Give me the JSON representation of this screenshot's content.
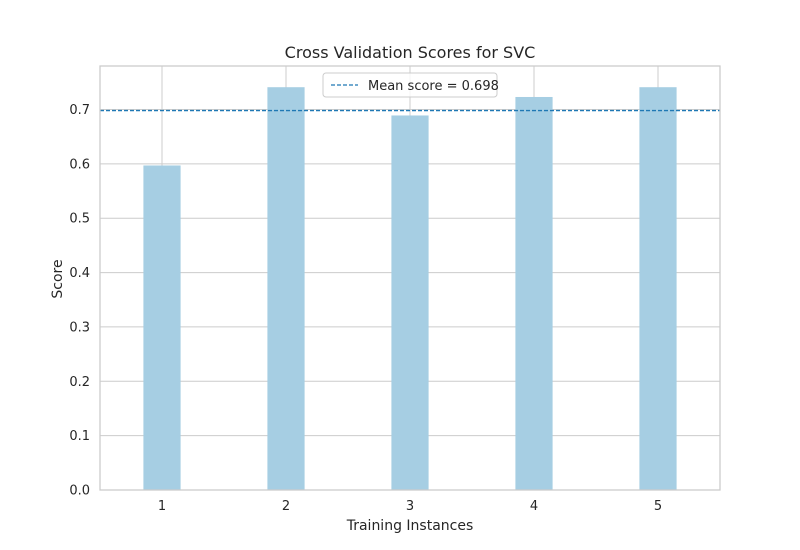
{
  "chart_data": {
    "type": "bar",
    "title": "Cross Validation Scores for SVC",
    "xlabel": "Training Instances",
    "ylabel": "Score",
    "categories": [
      "1",
      "2",
      "3",
      "4",
      "5"
    ],
    "values": [
      0.597,
      0.741,
      0.689,
      0.723,
      0.741
    ],
    "ylim": [
      0.0,
      0.78
    ],
    "yticks": [
      0.0,
      0.1,
      0.2,
      0.3,
      0.4,
      0.5,
      0.6,
      0.7
    ],
    "ytick_labels": [
      "0.0",
      "0.1",
      "0.2",
      "0.3",
      "0.4",
      "0.5",
      "0.6",
      "0.7"
    ],
    "mean_score": 0.698,
    "legend": {
      "label": "Mean score = 0.698",
      "placement": "top-center"
    },
    "grid": true,
    "colors": {
      "bar": "#a6cee3",
      "mean_line": "#1f78b4",
      "grid": "#cccccc",
      "frame": "#cccccc"
    }
  }
}
